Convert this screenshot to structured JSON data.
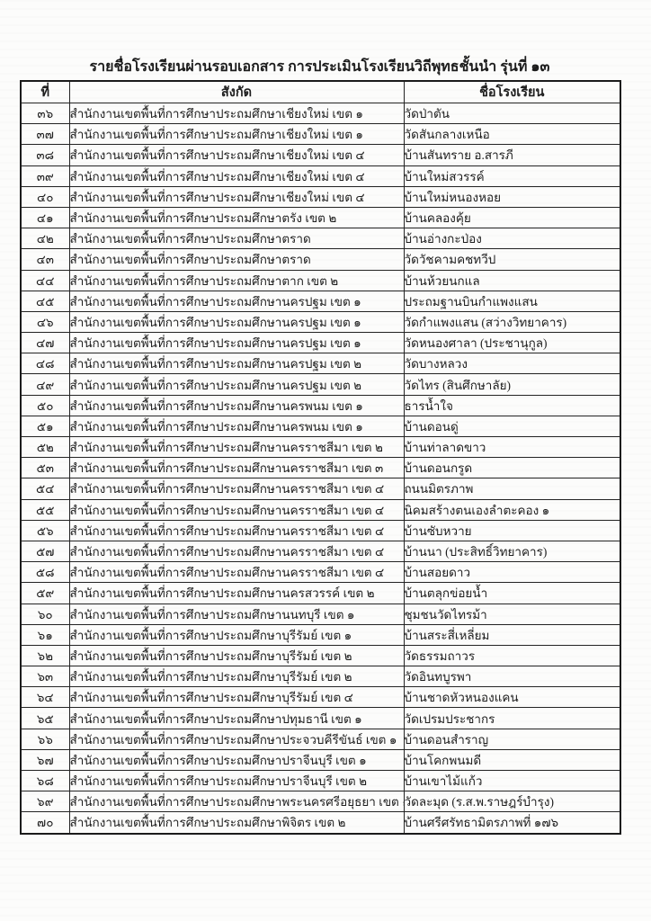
{
  "page": {
    "title": "รายชื่อโรงเรียนผ่านรอบเอกสาร การประเมินโรงเรียนวิถีพุทธชั้นนำ รุ่นที่ ๑๓"
  },
  "table": {
    "headers": [
      "ที่",
      "สังกัด",
      "ชื่อโรงเรียน"
    ],
    "rows": [
      [
        "๓๖",
        "สำนักงานเขตพื้นที่การศึกษาประถมศึกษาเชียงใหม่ เขต ๑",
        "วัดป่าตัน"
      ],
      [
        "๓๗",
        "สำนักงานเขตพื้นที่การศึกษาประถมศึกษาเชียงใหม่ เขต ๑",
        "วัดสันกลางเหนือ"
      ],
      [
        "๓๘",
        "สำนักงานเขตพื้นที่การศึกษาประถมศึกษาเชียงใหม่ เขต ๔",
        "บ้านสันทราย อ.สารภี"
      ],
      [
        "๓๙",
        "สำนักงานเขตพื้นที่การศึกษาประถมศึกษาเชียงใหม่ เขต ๔",
        "บ้านใหม่สวรรค์"
      ],
      [
        "๔๐",
        "สำนักงานเขตพื้นที่การศึกษาประถมศึกษาเชียงใหม่ เขต ๔",
        "บ้านใหม่หนองหอย"
      ],
      [
        "๔๑",
        "สำนักงานเขตพื้นที่การศึกษาประถมศึกษาตรัง เขต ๒",
        "บ้านคลองคุ้ย"
      ],
      [
        "๔๒",
        "สำนักงานเขตพื้นที่การศึกษาประถมศึกษาตราด",
        "บ้านอ่างกะป่อง"
      ],
      [
        "๔๓",
        "สำนักงานเขตพื้นที่การศึกษาประถมศึกษาตราด",
        "วัดวัชคามคชทวีป"
      ],
      [
        "๔๔",
        "สำนักงานเขตพื้นที่การศึกษาประถมศึกษาตาก เขต ๒",
        "บ้านห้วยนกแล"
      ],
      [
        "๔๕",
        "สำนักงานเขตพื้นที่การศึกษาประถมศึกษานครปฐม เขต ๑",
        "ประถมฐานบินกำแพงแสน"
      ],
      [
        "๔๖",
        "สำนักงานเขตพื้นที่การศึกษาประถมศึกษานครปฐม เขต ๑",
        "วัดกำแพงแสน (สว่างวิทยาคาร)"
      ],
      [
        "๔๗",
        "สำนักงานเขตพื้นที่การศึกษาประถมศึกษานครปฐม เขต ๑",
        "วัดหนองศาลา (ประชานุกูล)"
      ],
      [
        "๔๘",
        "สำนักงานเขตพื้นที่การศึกษาประถมศึกษานครปฐม เขต ๒",
        "วัดบางหลวง"
      ],
      [
        "๔๙",
        "สำนักงานเขตพื้นที่การศึกษาประถมศึกษานครปฐม เขต ๒",
        "วัดไทร (สินศึกษาลัย)"
      ],
      [
        "๕๐",
        "สำนักงานเขตพื้นที่การศึกษาประถมศึกษานครพนม เขต ๑",
        "ธารน้ำใจ"
      ],
      [
        "๕๑",
        "สำนักงานเขตพื้นที่การศึกษาประถมศึกษานครพนม เขต ๑",
        "บ้านดอนดู่"
      ],
      [
        "๕๒",
        "สำนักงานเขตพื้นที่การศึกษาประถมศึกษานครราชสีมา เขต ๒",
        "บ้านท่าลาดขาว"
      ],
      [
        "๕๓",
        "สำนักงานเขตพื้นที่การศึกษาประถมศึกษานครราชสีมา เขต ๓",
        "บ้านดอนกรูด"
      ],
      [
        "๕๔",
        "สำนักงานเขตพื้นที่การศึกษาประถมศึกษานครราชสีมา เขต ๔",
        "ถนนมิตรภาพ"
      ],
      [
        "๕๕",
        "สำนักงานเขตพื้นที่การศึกษาประถมศึกษานครราชสีมา เขต ๔",
        "นิคมสร้างตนเองลำตะคอง ๑"
      ],
      [
        "๕๖",
        "สำนักงานเขตพื้นที่การศึกษาประถมศึกษานครราชสีมา เขต ๔",
        "บ้านซับหวาย"
      ],
      [
        "๕๗",
        "สำนักงานเขตพื้นที่การศึกษาประถมศึกษานครราชสีมา เขต ๔",
        "บ้านนา (ประสิทธิ์วิทยาคาร)"
      ],
      [
        "๕๘",
        "สำนักงานเขตพื้นที่การศึกษาประถมศึกษานครราชสีมา เขต ๔",
        "บ้านสอยดาว"
      ],
      [
        "๕๙",
        "สำนักงานเขตพื้นที่การศึกษาประถมศึกษานครสวรรค์ เขต ๒",
        "บ้านตลุกข่อยน้ำ"
      ],
      [
        "๖๐",
        "สำนักงานเขตพื้นที่การศึกษาประถมศึกษานนทบุรี เขต ๑",
        "ชุมชนวัดไทรม้า"
      ],
      [
        "๖๑",
        "สำนักงานเขตพื้นที่การศึกษาประถมศึกษาบุรีรัมย์ เขต ๑",
        "บ้านสระสี่เหลี่ยม"
      ],
      [
        "๖๒",
        "สำนักงานเขตพื้นที่การศึกษาประถมศึกษาบุรีรัมย์ เขต ๒",
        "วัดธรรมถาวร"
      ],
      [
        "๖๓",
        "สำนักงานเขตพื้นที่การศึกษาประถมศึกษาบุรีรัมย์ เขต ๒",
        "วัดอินทบูรพา"
      ],
      [
        "๖๔",
        "สำนักงานเขตพื้นที่การศึกษาประถมศึกษาบุรีรัมย์ เขต ๔",
        "บ้านชาดหัวหนองแคน"
      ],
      [
        "๖๕",
        "สำนักงานเขตพื้นที่การศึกษาประถมศึกษาปทุมธานี เขต ๑",
        "วัดเปรมประชากร"
      ],
      [
        "๖๖",
        "สำนักงานเขตพื้นที่การศึกษาประถมศึกษาประจวบคีรีขันธ์ เขต ๑",
        "บ้านดอนสำราญ"
      ],
      [
        "๖๗",
        "สำนักงานเขตพื้นที่การศึกษาประถมศึกษาปราจีนบุรี เขต ๑",
        "บ้านโคกพนมดี"
      ],
      [
        "๖๘",
        "สำนักงานเขตพื้นที่การศึกษาประถมศึกษาปราจีนบุรี เขต ๒",
        "บ้านเขาไม้แก้ว"
      ],
      [
        "๖๙",
        "สำนักงานเขตพื้นที่การศึกษาประถมศึกษาพระนครศรีอยุธยา เขต ๑",
        "วัดละมุด (ร.ส.พ.ราษฎร์บำรุง)"
      ],
      [
        "๗๐",
        "สำนักงานเขตพื้นที่การศึกษาประถมศึกษาพิจิตร เขต ๒",
        "บ้านศรีศรัทธามิตรภาพที่ ๑๗๖"
      ]
    ]
  }
}
